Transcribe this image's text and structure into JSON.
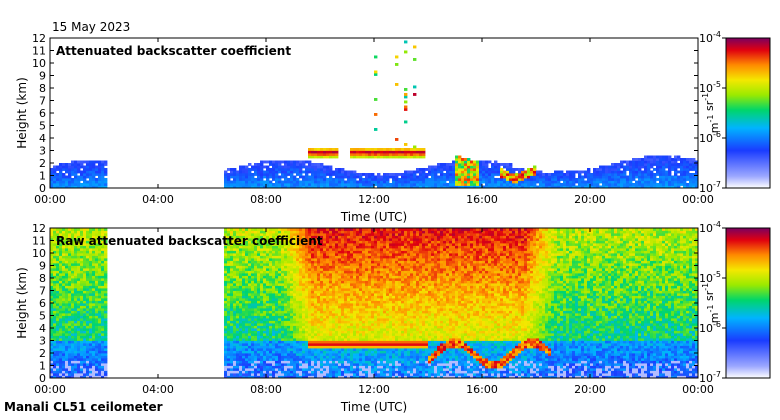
{
  "date_label": "15 May 2023",
  "footer_label": "Manali CL51 ceilometer",
  "chart_data": [
    {
      "type": "heatmap",
      "title": "Attenuated backscatter coefficient",
      "xlabel": "Time (UTC)",
      "ylabel": "Height (km)",
      "x_ticks": [
        "00:00",
        "04:00",
        "08:00",
        "12:00",
        "16:00",
        "20:00",
        "00:00"
      ],
      "x_tick_hours": [
        0,
        4,
        8,
        12,
        16,
        20,
        24
      ],
      "y_ticks": [
        0,
        1,
        2,
        3,
        4,
        5,
        6,
        7,
        8,
        9,
        10,
        11,
        12
      ],
      "ylim": [
        0,
        12
      ],
      "xlim_hours": [
        0,
        24
      ],
      "colorbar": {
        "labels": [
          "10-4",
          "10-5",
          "10-6",
          "10-7"
        ],
        "label_values": [
          -4,
          -5,
          -6,
          -7
        ],
        "unit": "m-1 sr-1",
        "scale": "log10",
        "range": [
          -7,
          -4
        ]
      },
      "data_gaps_hours": [
        [
          2.1,
          6.4
        ]
      ],
      "features": [
        {
          "name": "boundary layer",
          "hours": [
            0,
            24
          ],
          "height_km": [
            0,
            2.5
          ]
        },
        {
          "name": "cloud layer",
          "hours": [
            9.6,
            13.9
          ],
          "height_km": [
            2.5,
            3.3
          ]
        },
        {
          "name": "cloud",
          "hours": [
            15.0,
            15.8
          ],
          "height_km": [
            0.2,
            2.8
          ]
        },
        {
          "name": "cloud",
          "hours": [
            16.7,
            18.0
          ],
          "height_km": [
            0.2,
            2.5
          ]
        },
        {
          "name": "falling streaks",
          "hours": [
            12.0,
            13.6
          ],
          "height_km": [
            3.0,
            12.0
          ]
        }
      ]
    },
    {
      "type": "heatmap",
      "title": "Raw attenuated backscatter coefficient",
      "xlabel": "Time (UTC)",
      "ylabel": "Height (km)",
      "x_ticks": [
        "00:00",
        "04:00",
        "08:00",
        "12:00",
        "16:00",
        "20:00",
        "00:00"
      ],
      "x_tick_hours": [
        0,
        4,
        8,
        12,
        16,
        20,
        24
      ],
      "y_ticks": [
        0,
        1,
        2,
        3,
        4,
        5,
        6,
        7,
        8,
        9,
        10,
        11,
        12
      ],
      "ylim": [
        0,
        12
      ],
      "xlim_hours": [
        0,
        24
      ],
      "colorbar": {
        "labels": [
          "10-4",
          "10-5",
          "10-6",
          "10-7"
        ],
        "label_values": [
          -4,
          -5,
          -6,
          -7
        ],
        "unit": "m-1 sr-1",
        "scale": "log10",
        "range": [
          -7,
          -4
        ]
      },
      "data_gaps_hours": [
        [
          2.1,
          6.4
        ]
      ],
      "features": [
        {
          "name": "daytime solar noise",
          "hours": [
            9.0,
            18.5
          ],
          "height_km": [
            3.0,
            12.0
          ]
        },
        {
          "name": "cloud layer",
          "hours": [
            9.6,
            14.0
          ],
          "height_km": [
            2.4,
            3.1
          ]
        },
        {
          "name": "cloud",
          "hours": [
            14.0,
            18.5
          ],
          "height_km": [
            0.3,
            3.0
          ]
        }
      ]
    }
  ]
}
